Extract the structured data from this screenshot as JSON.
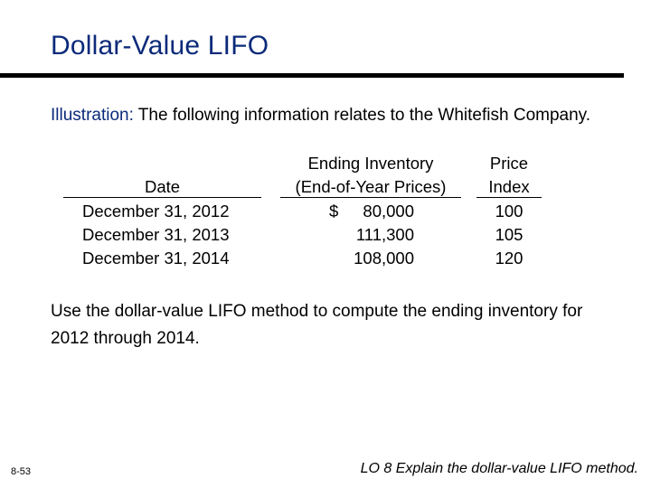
{
  "slide": {
    "title": "Dollar-Value LIFO",
    "intro": {
      "label": "Illustration:",
      "text": " The following information relates to the Whitefish Company."
    },
    "table": {
      "headers": {
        "date": "Date",
        "inventory_line1": "Ending Inventory",
        "inventory_line2": "(End-of-Year Prices)",
        "price_line1": "Price",
        "price_line2": "Index"
      },
      "rows": [
        {
          "date": "December 31, 2012",
          "currency": "$",
          "inventory": "80,000",
          "index": "100"
        },
        {
          "date": "December 31, 2013",
          "currency": "",
          "inventory": "111,300",
          "index": "105"
        },
        {
          "date": "December 31, 2014",
          "currency": "",
          "inventory": "108,000",
          "index": "120"
        }
      ]
    },
    "instruction": "Use the dollar-value LIFO method to compute the ending inventory for 2012 through 2014.",
    "slide_number": "8-53",
    "learning_objective": "LO 8  Explain the dollar-value LIFO method."
  },
  "colors": {
    "title": "#0b2a7a",
    "label": "#0b2a7a",
    "rule": "#000000"
  }
}
